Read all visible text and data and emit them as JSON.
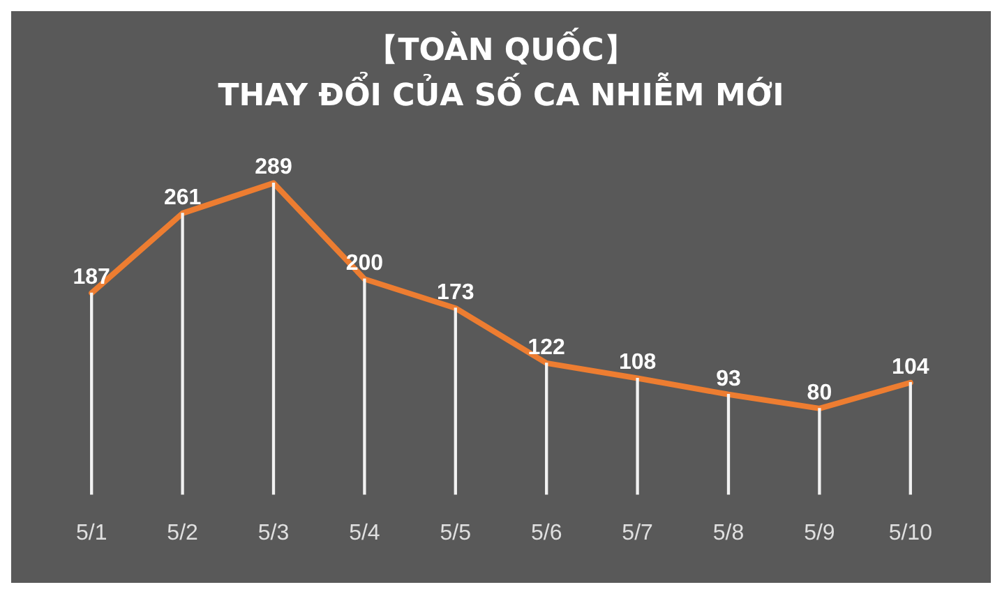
{
  "chart_data": {
    "type": "line",
    "title": "【TOÀN QUỐC】",
    "subtitle": "THAY ĐỔI CỦA SỐ CA NHIỄM MỚI",
    "categories": [
      "5/1",
      "5/2",
      "5/3",
      "5/4",
      "5/5",
      "5/6",
      "5/7",
      "5/8",
      "5/9",
      "5/10"
    ],
    "series": [
      {
        "color": "#ed7d31",
        "values": [
          187,
          261,
          289,
          200,
          173,
          122,
          108,
          93,
          80,
          104
        ],
        "value_labels": [
          "187",
          "261",
          "289",
          "200",
          "173",
          "122",
          "108",
          "93",
          "80",
          "104"
        ]
      },
      {
        "type": "bar",
        "color": "#f2f2f2",
        "values": [
          187,
          261,
          289,
          200,
          173,
          122,
          108,
          93,
          80,
          104
        ]
      }
    ],
    "marker": "none",
    "grid": false,
    "legend": false,
    "line_style": "solid",
    "tick_labels": "x"
  }
}
